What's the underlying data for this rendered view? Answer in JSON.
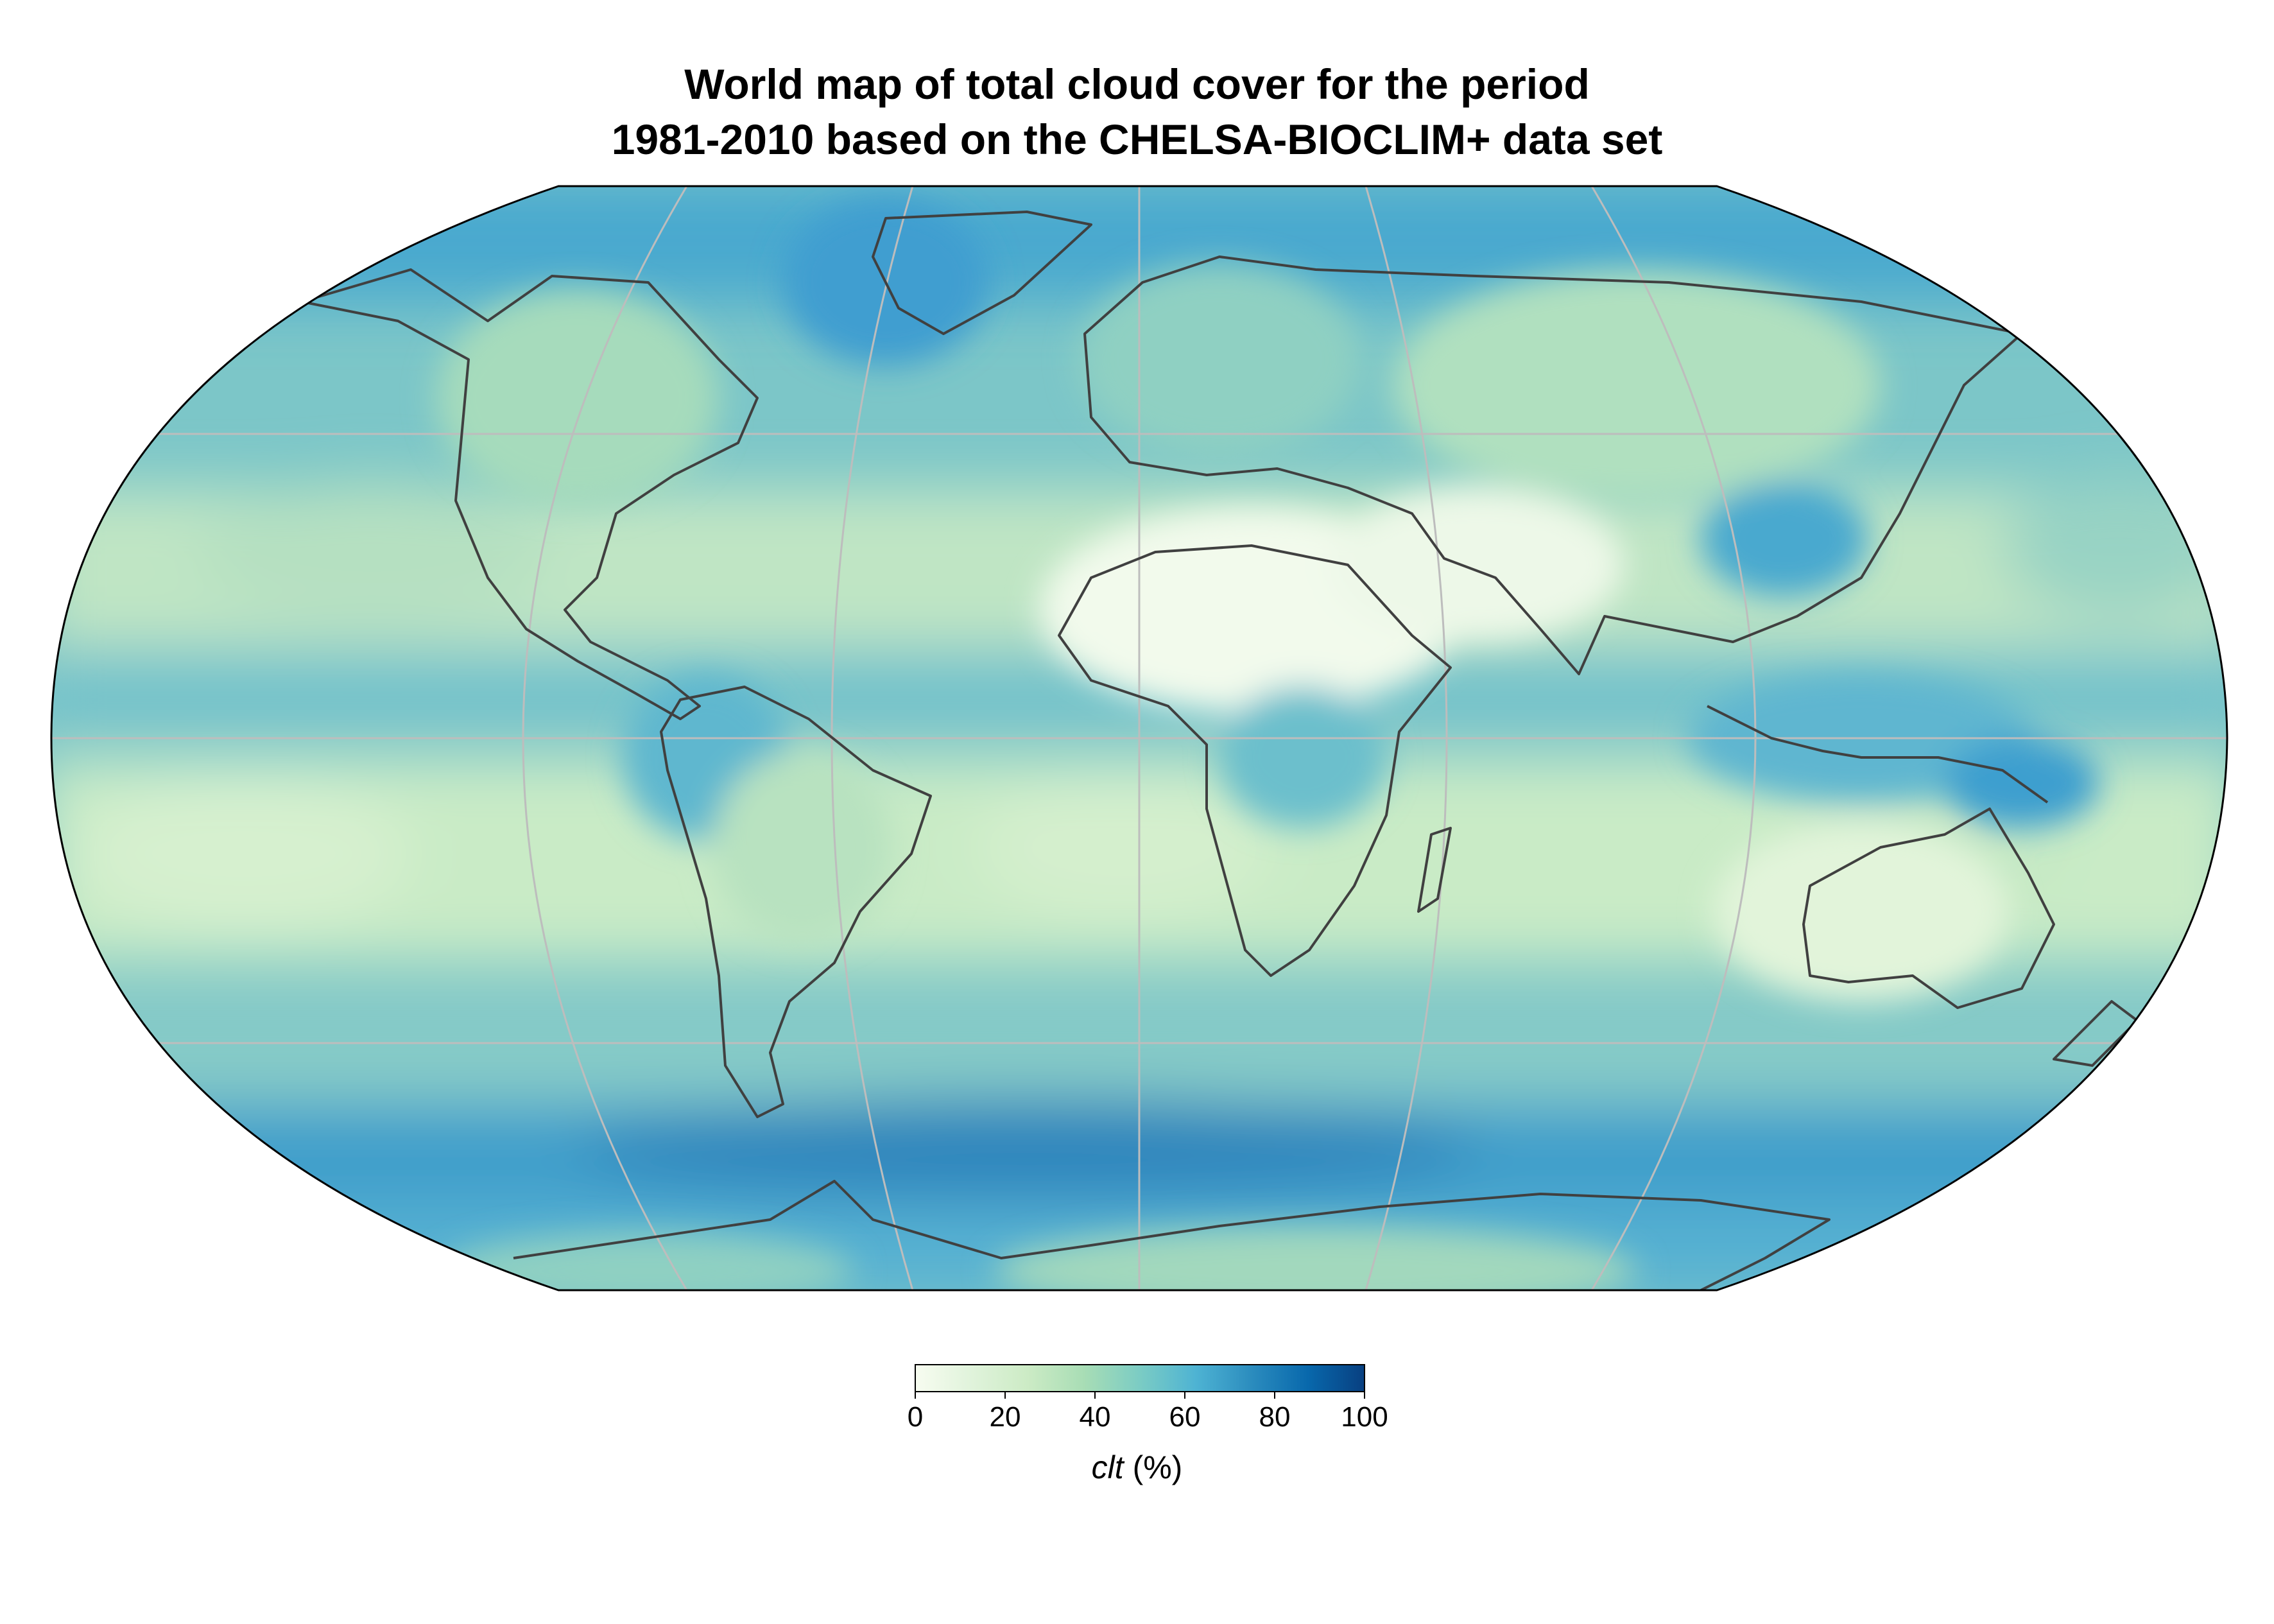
{
  "title": {
    "line1": "World map of total cloud cover for the period",
    "line2": "1981-2010 based on the CHELSA-BIOCLIM+ data set"
  },
  "map": {
    "projection": "Robinson",
    "variable": "total cloud cover",
    "graticule_color": "#bdbdbd",
    "coastline_color": "#404040"
  },
  "colorbar": {
    "ticks": [
      "0",
      "20",
      "40",
      "60",
      "80",
      "100"
    ],
    "range": [
      0,
      100
    ],
    "label_var": "clt",
    "label_unit": " (%)",
    "colors": [
      "#f7fcf0",
      "#e0f3db",
      "#ccebc5",
      "#a8ddb5",
      "#7bccc4",
      "#4eb3d3",
      "#2b8cbe",
      "#0868ac",
      "#084081"
    ]
  }
}
